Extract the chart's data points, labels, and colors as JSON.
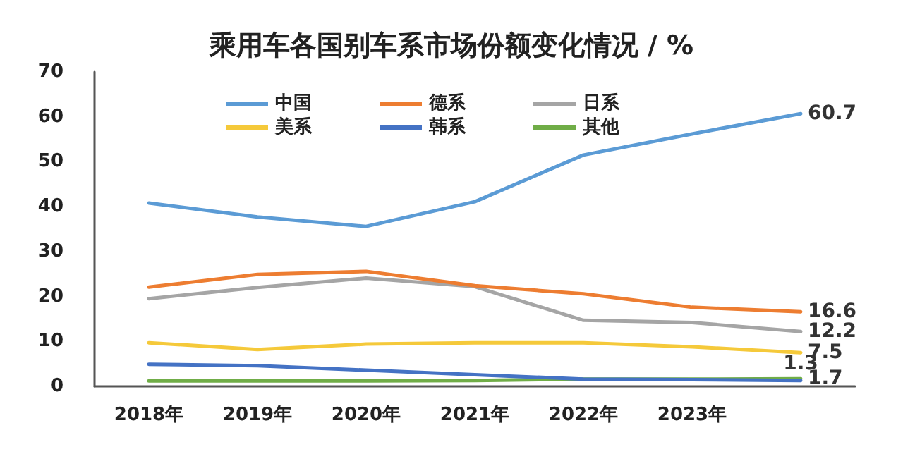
{
  "chart_data": {
    "type": "line",
    "title": "乘用车各国别车系市场份额变化情况 / %",
    "categories": [
      "2018年",
      "2019年",
      "2020年",
      "2021年",
      "2022年",
      "2023年",
      null
    ],
    "series": [
      {
        "name": "中国",
        "color": "#5b9bd5",
        "values": [
          40.8,
          37.7,
          35.6,
          41.1,
          51.5,
          56.2,
          60.7
        ],
        "value_labels": [
          null,
          null,
          null,
          null,
          null,
          null,
          "60.7"
        ]
      },
      {
        "name": "德系",
        "color": "#ed7d31",
        "values": [
          22.1,
          24.9,
          25.6,
          22.4,
          20.6,
          17.6,
          16.6
        ],
        "value_labels": [
          null,
          null,
          null,
          null,
          null,
          null,
          "16.6"
        ]
      },
      {
        "name": "日系",
        "color": "#a5a5a5",
        "values": [
          19.5,
          22.0,
          24.1,
          22.2,
          14.7,
          14.2,
          12.2
        ],
        "value_labels": [
          null,
          null,
          null,
          null,
          null,
          null,
          "12.2"
        ]
      },
      {
        "name": "美系",
        "color": "#f5c93a",
        "values": [
          9.7,
          8.2,
          9.4,
          9.7,
          9.7,
          8.8,
          7.5
        ],
        "value_labels": [
          null,
          null,
          null,
          null,
          null,
          null,
          "7.5"
        ]
      },
      {
        "name": "韩系",
        "color": "#4472c4",
        "values": [
          4.9,
          4.6,
          3.6,
          2.6,
          1.6,
          1.5,
          1.3
        ],
        "value_labels": [
          null,
          null,
          null,
          null,
          null,
          null,
          "1.3"
        ]
      },
      {
        "name": "其他",
        "color": "#70ad47",
        "values": [
          1.2,
          1.2,
          1.2,
          1.3,
          1.6,
          1.6,
          1.7
        ],
        "value_labels": [
          null,
          null,
          null,
          null,
          null,
          null,
          "1.7"
        ]
      }
    ],
    "ylim": [
      0,
      70
    ],
    "yticks": [
      0,
      10,
      20,
      30,
      40,
      50,
      60,
      70
    ],
    "grid": false,
    "legend": "top",
    "marker": "none",
    "line_style": "solid"
  }
}
